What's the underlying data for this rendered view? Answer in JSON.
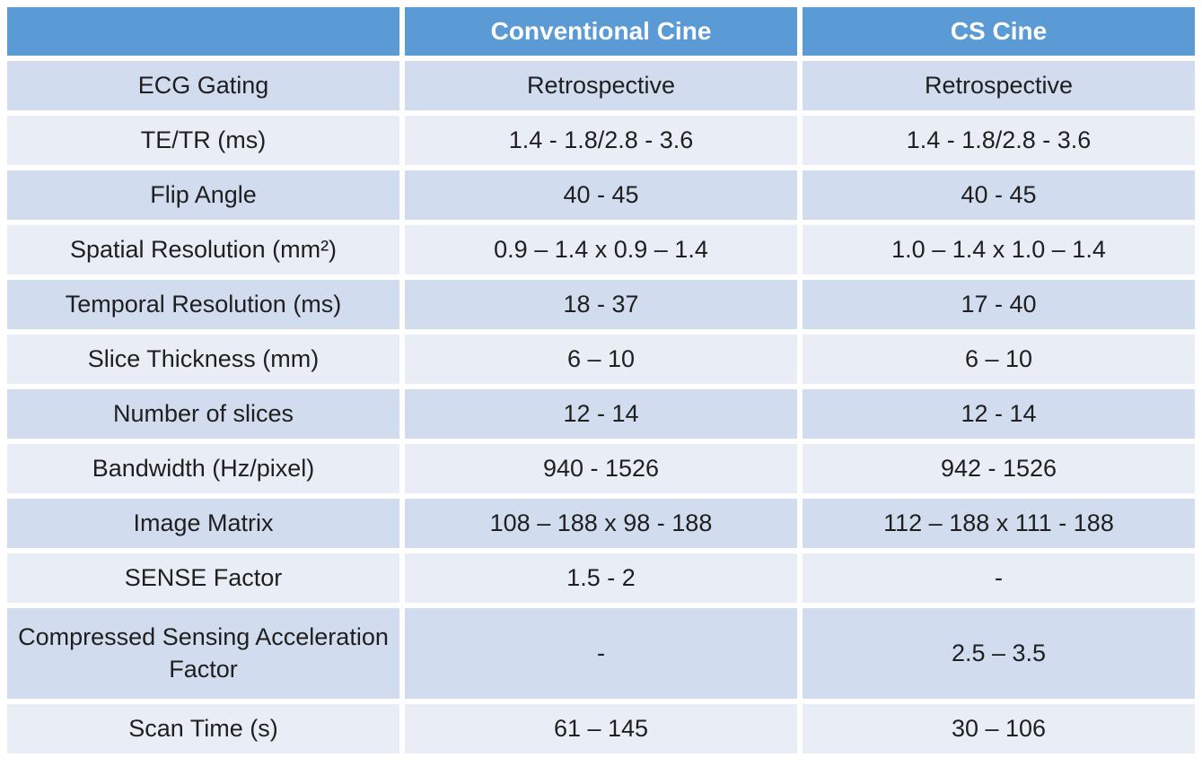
{
  "colors": {
    "header_bg": "#5b9bd5",
    "band_dark": "#d1dcee",
    "band_light": "#e9edf6",
    "header_text": "#ffffff",
    "body_text": "#1f1f1f"
  },
  "table": {
    "columns": [
      "",
      "Conventional Cine",
      "CS Cine"
    ],
    "rows": [
      [
        "ECG Gating",
        "Retrospective",
        "Retrospective"
      ],
      [
        "TE/TR (ms)",
        "1.4 - 1.8/2.8 - 3.6",
        "1.4 - 1.8/2.8 - 3.6"
      ],
      [
        "Flip Angle",
        "40 - 45",
        "40 - 45"
      ],
      [
        "Spatial Resolution (mm²)",
        "0.9 – 1.4 x 0.9 – 1.4",
        "1.0 – 1.4 x 1.0 – 1.4"
      ],
      [
        "Temporal Resolution (ms)",
        "18 - 37",
        "17 - 40"
      ],
      [
        "Slice Thickness (mm)",
        "6 – 10",
        "6 – 10"
      ],
      [
        "Number of slices",
        "12 - 14",
        "12 - 14"
      ],
      [
        "Bandwidth (Hz/pixel)",
        "940 - 1526",
        "942 - 1526"
      ],
      [
        "Image Matrix",
        "108 – 188 x 98 - 188",
        "112 – 188 x 111 - 188"
      ],
      [
        "SENSE Factor",
        "1.5 - 2",
        "-"
      ],
      [
        "Compressed Sensing Acceleration Factor",
        "-",
        "2.5 – 3.5"
      ],
      [
        "Scan Time (s)",
        "61 – 145",
        "30 – 106"
      ]
    ]
  }
}
